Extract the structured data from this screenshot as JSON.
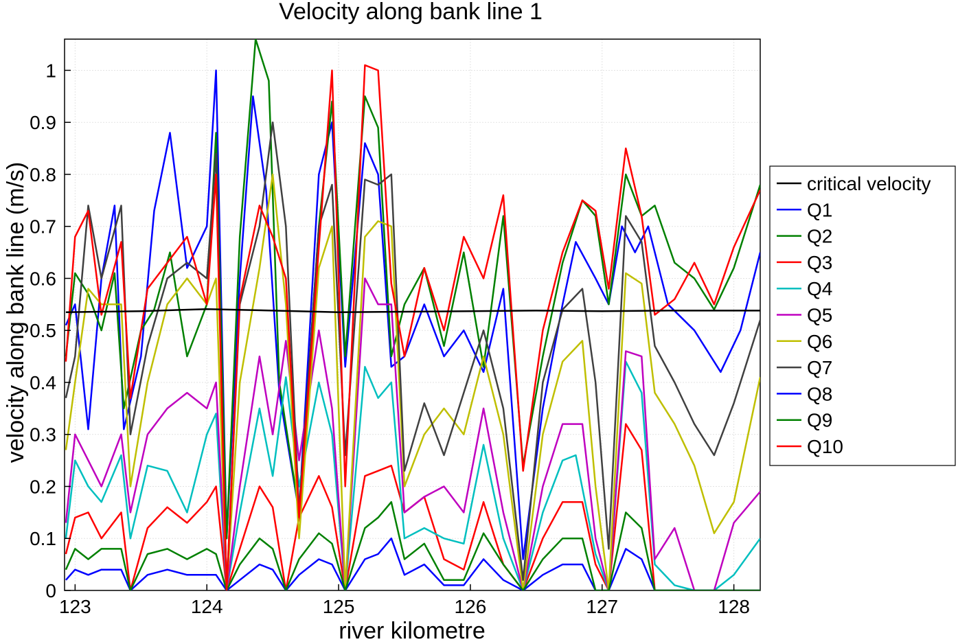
{
  "chart_data": {
    "type": "line",
    "title": "Velocity along bank line 1",
    "xlabel": "river kilometre",
    "ylabel": "velocity along bank line (m/s)",
    "xlim": [
      122.92,
      128.2
    ],
    "ylim": [
      0,
      1.06
    ],
    "xticks": [
      123,
      124,
      125,
      126,
      127,
      128
    ],
    "yticks": [
      0,
      0.1,
      0.2,
      0.3,
      0.4,
      0.5,
      0.6,
      0.7,
      0.8,
      0.9,
      1
    ],
    "grid": true,
    "legend_position": "right",
    "series": [
      {
        "name": "critical velocity",
        "color": "#000000",
        "x": [
          122.93,
          123.5,
          124.0,
          124.5,
          125.0,
          125.5,
          126.0,
          126.5,
          127.0,
          127.5,
          128.2
        ],
        "values": [
          0.535,
          0.537,
          0.541,
          0.538,
          0.535,
          0.536,
          0.537,
          0.538,
          0.537,
          0.538,
          0.538
        ]
      },
      {
        "name": "Q1",
        "color": "#0000ff",
        "x": [
          122.93,
          123.0,
          123.1,
          123.2,
          123.3,
          123.37,
          123.5,
          123.6,
          123.72,
          123.85,
          124.0,
          124.07,
          124.15,
          124.25,
          124.35,
          124.45,
          124.55,
          124.7,
          124.85,
          124.95,
          125.05,
          125.2,
          125.3,
          125.4,
          125.5,
          125.65,
          125.8,
          125.95,
          126.1,
          126.25,
          126.4,
          126.55,
          126.7,
          126.8,
          126.95,
          127.05,
          127.15,
          127.25,
          127.35,
          127.5,
          127.7,
          127.9,
          128.05,
          128.2
        ],
        "values": [
          0.51,
          0.55,
          0.31,
          0.6,
          0.74,
          0.31,
          0.45,
          0.73,
          0.88,
          0.62,
          0.7,
          1.0,
          0.1,
          0.6,
          0.95,
          0.77,
          0.38,
          0.15,
          0.8,
          0.9,
          0.43,
          0.86,
          0.8,
          0.43,
          0.45,
          0.55,
          0.45,
          0.5,
          0.42,
          0.58,
          0.06,
          0.35,
          0.55,
          0.67,
          0.6,
          0.55,
          0.7,
          0.65,
          0.7,
          0.55,
          0.5,
          0.42,
          0.5,
          0.65
        ]
      },
      {
        "name": "Q2",
        "color": "#008000",
        "x": [
          122.93,
          123.0,
          123.1,
          123.2,
          123.3,
          123.37,
          123.5,
          123.6,
          123.72,
          123.85,
          124.0,
          124.07,
          124.15,
          124.25,
          124.37,
          124.47,
          124.55,
          124.7,
          124.85,
          124.95,
          125.05,
          125.2,
          125.3,
          125.4,
          125.5,
          125.65,
          125.8,
          125.95,
          126.1,
          126.25,
          126.4,
          126.55,
          126.7,
          126.85,
          126.95,
          127.05,
          127.18,
          127.3,
          127.4,
          127.55,
          127.7,
          127.85,
          128.0,
          128.2
        ],
        "values": [
          0.45,
          0.61,
          0.57,
          0.5,
          0.61,
          0.35,
          0.5,
          0.54,
          0.65,
          0.45,
          0.55,
          0.88,
          0.1,
          0.68,
          1.06,
          0.98,
          0.4,
          0.15,
          0.7,
          0.94,
          0.45,
          0.95,
          0.89,
          0.45,
          0.55,
          0.62,
          0.47,
          0.65,
          0.43,
          0.72,
          0.24,
          0.45,
          0.63,
          0.75,
          0.72,
          0.55,
          0.8,
          0.72,
          0.74,
          0.63,
          0.6,
          0.54,
          0.62,
          0.78
        ]
      },
      {
        "name": "Q3",
        "color": "#ff0000",
        "x": [
          122.93,
          123.0,
          123.1,
          123.2,
          123.35,
          123.42,
          123.55,
          123.7,
          123.85,
          124.0,
          124.07,
          124.15,
          124.25,
          124.4,
          124.5,
          124.6,
          124.7,
          124.85,
          124.95,
          125.05,
          125.2,
          125.3,
          125.4,
          125.5,
          125.65,
          125.8,
          125.95,
          126.1,
          126.25,
          126.4,
          126.55,
          126.7,
          126.85,
          126.95,
          127.05,
          127.18,
          127.3,
          127.4,
          127.55,
          127.7,
          127.85,
          128.0,
          128.2
        ],
        "values": [
          0.07,
          0.14,
          0.15,
          0.1,
          0.15,
          0.0,
          0.12,
          0.16,
          0.13,
          0.17,
          0.2,
          0.0,
          0.08,
          0.2,
          0.16,
          0.0,
          0.14,
          0.22,
          0.16,
          0.0,
          0.22,
          0.23,
          0.24,
          0.15,
          0.18,
          0.06,
          0.04,
          0.17,
          0.05,
          0.0,
          0.1,
          0.17,
          0.17,
          0.05,
          0.0,
          0.32,
          0.27,
          0.0,
          0.0,
          0.0,
          0.0,
          0.0,
          0.0
        ]
      },
      {
        "name": "Q4",
        "color": "#00bfbf",
        "x": [
          122.93,
          123.0,
          123.1,
          123.2,
          123.35,
          123.42,
          123.55,
          123.7,
          123.85,
          124.0,
          124.07,
          124.15,
          124.25,
          124.4,
          124.5,
          124.6,
          124.7,
          124.85,
          124.95,
          125.05,
          125.2,
          125.3,
          125.4,
          125.5,
          125.65,
          125.8,
          125.95,
          126.1,
          126.25,
          126.4,
          126.55,
          126.7,
          126.8,
          126.95,
          127.05,
          127.18,
          127.3,
          127.4,
          127.55,
          127.7,
          127.85,
          128.0,
          128.2
        ],
        "values": [
          0.1,
          0.25,
          0.2,
          0.17,
          0.26,
          0.1,
          0.24,
          0.23,
          0.15,
          0.3,
          0.34,
          0.0,
          0.15,
          0.35,
          0.22,
          0.41,
          0.2,
          0.4,
          0.3,
          0.0,
          0.43,
          0.37,
          0.4,
          0.1,
          0.12,
          0.1,
          0.09,
          0.28,
          0.1,
          0.0,
          0.15,
          0.25,
          0.26,
          0.07,
          0.0,
          0.44,
          0.38,
          0.05,
          0.01,
          0.0,
          0.0,
          0.03,
          0.1
        ]
      },
      {
        "name": "Q5",
        "color": "#bf00bf",
        "x": [
          122.93,
          123.0,
          123.1,
          123.2,
          123.35,
          123.42,
          123.55,
          123.7,
          123.85,
          124.0,
          124.07,
          124.15,
          124.25,
          124.4,
          124.5,
          124.6,
          124.7,
          124.85,
          124.95,
          125.05,
          125.2,
          125.3,
          125.4,
          125.5,
          125.65,
          125.8,
          125.95,
          126.1,
          126.25,
          126.4,
          126.55,
          126.7,
          126.85,
          126.95,
          127.05,
          127.18,
          127.3,
          127.4,
          127.55,
          127.7,
          127.85,
          128.0,
          128.2
        ],
        "values": [
          0.13,
          0.3,
          0.25,
          0.2,
          0.3,
          0.15,
          0.3,
          0.35,
          0.38,
          0.35,
          0.4,
          0.0,
          0.2,
          0.45,
          0.3,
          0.48,
          0.25,
          0.5,
          0.35,
          0.0,
          0.6,
          0.55,
          0.55,
          0.15,
          0.18,
          0.2,
          0.15,
          0.35,
          0.15,
          0.0,
          0.2,
          0.32,
          0.32,
          0.1,
          0.0,
          0.46,
          0.45,
          0.06,
          0.12,
          0.0,
          0.0,
          0.13,
          0.19
        ]
      },
      {
        "name": "Q6",
        "color": "#bfbf00",
        "x": [
          122.93,
          123.0,
          123.1,
          123.2,
          123.35,
          123.42,
          123.55,
          123.7,
          123.85,
          124.0,
          124.07,
          124.15,
          124.25,
          124.4,
          124.5,
          124.6,
          124.7,
          124.85,
          124.95,
          125.05,
          125.2,
          125.3,
          125.4,
          125.5,
          125.65,
          125.8,
          125.95,
          126.1,
          126.25,
          126.4,
          126.55,
          126.7,
          126.85,
          126.95,
          127.05,
          127.18,
          127.3,
          127.4,
          127.55,
          127.7,
          127.85,
          128.0,
          128.2
        ],
        "values": [
          0.27,
          0.4,
          0.58,
          0.55,
          0.55,
          0.2,
          0.4,
          0.55,
          0.6,
          0.55,
          0.6,
          0.0,
          0.4,
          0.62,
          0.8,
          0.55,
          0.1,
          0.62,
          0.7,
          0.0,
          0.68,
          0.71,
          0.7,
          0.2,
          0.3,
          0.35,
          0.3,
          0.45,
          0.3,
          0.0,
          0.3,
          0.44,
          0.48,
          0.2,
          0.0,
          0.61,
          0.59,
          0.38,
          0.32,
          0.24,
          0.11,
          0.17,
          0.41
        ]
      },
      {
        "name": "Q7",
        "color": "#404040",
        "x": [
          122.93,
          123.0,
          123.1,
          123.2,
          123.35,
          123.42,
          123.55,
          123.7,
          123.85,
          124.0,
          124.07,
          124.15,
          124.25,
          124.4,
          124.5,
          124.6,
          124.7,
          124.85,
          124.95,
          125.05,
          125.2,
          125.3,
          125.4,
          125.5,
          125.65,
          125.8,
          125.95,
          126.1,
          126.25,
          126.4,
          126.55,
          126.7,
          126.85,
          126.95,
          127.05,
          127.18,
          127.3,
          127.4,
          127.55,
          127.7,
          127.85,
          128.0,
          128.2
        ],
        "values": [
          0.37,
          0.45,
          0.74,
          0.6,
          0.74,
          0.3,
          0.47,
          0.6,
          0.63,
          0.6,
          0.84,
          0.0,
          0.55,
          0.7,
          0.9,
          0.7,
          0.15,
          0.7,
          0.78,
          0.26,
          0.79,
          0.78,
          0.8,
          0.23,
          0.36,
          0.26,
          0.38,
          0.5,
          0.35,
          0.02,
          0.4,
          0.54,
          0.58,
          0.4,
          0.08,
          0.72,
          0.67,
          0.47,
          0.4,
          0.32,
          0.26,
          0.36,
          0.52
        ]
      },
      {
        "name": "Q8",
        "color": "#0000ff",
        "x": [
          122.93,
          123.0,
          123.1,
          123.2,
          123.35,
          123.42,
          123.55,
          123.7,
          123.85,
          124.0,
          124.07,
          124.15,
          124.25,
          124.4,
          124.5,
          124.6,
          124.7,
          124.85,
          124.95,
          125.05,
          125.2,
          125.3,
          125.4,
          125.5,
          125.65,
          125.8,
          125.95,
          126.1,
          126.25,
          126.4,
          126.55,
          126.7,
          126.85,
          126.95,
          127.05,
          127.18,
          127.3,
          127.4,
          127.55,
          127.7,
          127.85,
          128.0,
          128.2
        ],
        "values": [
          0.02,
          0.04,
          0.03,
          0.04,
          0.04,
          0.0,
          0.03,
          0.04,
          0.03,
          0.03,
          0.03,
          0.0,
          0.02,
          0.05,
          0.04,
          0.0,
          0.03,
          0.06,
          0.05,
          0.0,
          0.06,
          0.07,
          0.1,
          0.03,
          0.05,
          0.01,
          0.01,
          0.06,
          0.02,
          0.0,
          0.03,
          0.05,
          0.05,
          0.0,
          0.0,
          0.08,
          0.06,
          0.0,
          0.0,
          0.0,
          0.0,
          0.0,
          0.0
        ]
      },
      {
        "name": "Q9",
        "color": "#008000",
        "x": [
          122.93,
          123.0,
          123.1,
          123.2,
          123.35,
          123.42,
          123.55,
          123.7,
          123.85,
          124.0,
          124.07,
          124.15,
          124.25,
          124.4,
          124.5,
          124.6,
          124.7,
          124.85,
          124.95,
          125.05,
          125.2,
          125.3,
          125.4,
          125.5,
          125.65,
          125.8,
          125.95,
          126.1,
          126.25,
          126.4,
          126.55,
          126.7,
          126.85,
          126.95,
          127.05,
          127.18,
          127.3,
          127.4,
          127.55,
          127.7,
          127.85,
          128.0,
          128.2
        ],
        "values": [
          0.04,
          0.08,
          0.06,
          0.08,
          0.08,
          0.0,
          0.07,
          0.08,
          0.06,
          0.08,
          0.07,
          0.0,
          0.05,
          0.1,
          0.08,
          0.0,
          0.06,
          0.11,
          0.09,
          0.0,
          0.12,
          0.14,
          0.17,
          0.06,
          0.09,
          0.02,
          0.02,
          0.11,
          0.05,
          0.0,
          0.06,
          0.1,
          0.1,
          0.0,
          0.0,
          0.15,
          0.12,
          0.0,
          0.0,
          0.0,
          0.0,
          0.0,
          0.0
        ]
      },
      {
        "name": "Q10",
        "color": "#ff0000",
        "x": [
          122.93,
          123.0,
          123.1,
          123.2,
          123.35,
          123.42,
          123.55,
          123.7,
          123.85,
          124.0,
          124.07,
          124.15,
          124.25,
          124.4,
          124.5,
          124.6,
          124.7,
          124.85,
          124.95,
          125.05,
          125.2,
          125.3,
          125.4,
          125.5,
          125.65,
          125.8,
          125.95,
          126.1,
          126.25,
          126.4,
          126.55,
          126.7,
          126.85,
          126.95,
          127.05,
          127.18,
          127.3,
          127.4,
          127.55,
          127.7,
          127.85,
          128.0,
          128.2
        ],
        "values": [
          0.44,
          0.68,
          0.73,
          0.53,
          0.67,
          0.37,
          0.58,
          0.63,
          0.68,
          0.55,
          0.8,
          0.0,
          0.56,
          0.74,
          0.68,
          0.6,
          0.14,
          0.66,
          1.0,
          0.2,
          1.01,
          1.0,
          0.59,
          0.45,
          0.62,
          0.5,
          0.68,
          0.6,
          0.76,
          0.23,
          0.5,
          0.65,
          0.75,
          0.73,
          0.58,
          0.85,
          0.72,
          0.53,
          0.56,
          0.63,
          0.55,
          0.66,
          0.77
        ]
      }
    ]
  }
}
